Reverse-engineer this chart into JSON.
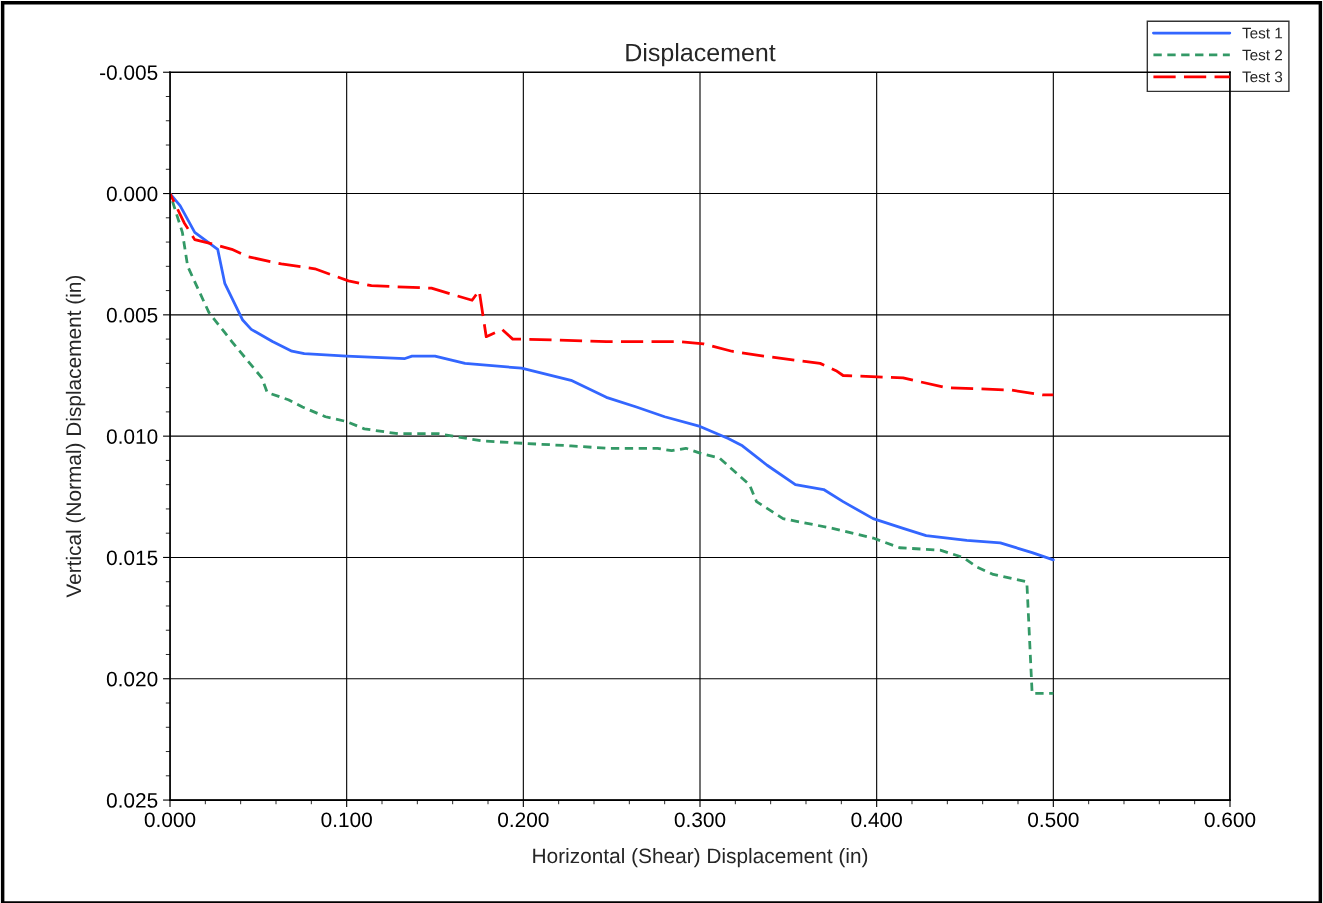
{
  "chart_data": {
    "type": "line",
    "title": "Displacement",
    "xlabel": "Horizontal (Shear) Displacement (in)",
    "ylabel": "Vertical (Normal) Displacement (in)",
    "xlim": [
      0,
      0.6
    ],
    "xticks": [
      {
        "value": 0,
        "label": "0.000"
      },
      {
        "value": 0.1,
        "label": "0.100"
      },
      {
        "value": 0.2,
        "label": "0.200"
      },
      {
        "value": 0.3,
        "label": "0.300"
      },
      {
        "value": 0.4,
        "label": "0.400"
      },
      {
        "value": 0.5,
        "label": "0.500"
      },
      {
        "value": 0.6,
        "label": "0.600"
      }
    ],
    "ylim": [
      0.025,
      -0.005
    ],
    "yticks": [
      {
        "value": -0.005,
        "label": "-0.005"
      },
      {
        "value": 0,
        "label": "0.000"
      },
      {
        "value": 0.005,
        "label": "0.005"
      },
      {
        "value": 0.01,
        "label": "0.010"
      },
      {
        "value": 0.015,
        "label": "0.015"
      },
      {
        "value": 0.02,
        "label": "0.020"
      },
      {
        "value": 0.025,
        "label": "0.025"
      }
    ],
    "grid": true,
    "legend": "top right",
    "series": [
      {
        "name": "Test 1",
        "color": "#3366ff",
        "line_style": "solid",
        "x": [
          0,
          0.0057,
          0.014,
          0.027,
          0.031,
          0.041,
          0.046,
          0.058,
          0.069,
          0.076,
          0.1,
          0.133,
          0.137,
          0.15,
          0.167,
          0.199,
          0.227,
          0.247,
          0.264,
          0.28,
          0.3,
          0.316,
          0.324,
          0.338,
          0.354,
          0.37,
          0.381,
          0.398,
          0.415,
          0.428,
          0.451,
          0.47,
          0.488,
          0.5
        ],
        "values": [
          0,
          0.0005,
          0.0016,
          0.0023,
          0.0037,
          0.0052,
          0.0056,
          0.0061,
          0.0065,
          0.0066,
          0.0067,
          0.0068,
          0.0067,
          0.0067,
          0.007,
          0.0072,
          0.0077,
          0.0084,
          0.0088,
          0.0092,
          0.0096,
          0.0101,
          0.0104,
          0.0112,
          0.012,
          0.0122,
          0.0127,
          0.0134,
          0.0138,
          0.0141,
          0.0143,
          0.0144,
          0.0148,
          0.0151
        ]
      },
      {
        "name": "Test 2",
        "color": "#339966",
        "line_style": "dotted",
        "x": [
          0,
          0.007,
          0.01,
          0.022,
          0.035,
          0.052,
          0.055,
          0.067,
          0.075,
          0.088,
          0.1,
          0.11,
          0.129,
          0.152,
          0.177,
          0.201,
          0.227,
          0.247,
          0.276,
          0.284,
          0.292,
          0.3,
          0.311,
          0.328,
          0.332,
          0.347,
          0.375,
          0.398,
          0.413,
          0.436,
          0.449,
          0.457,
          0.466,
          0.485,
          0.488,
          0.5
        ],
        "values": [
          0,
          0.0016,
          0.003,
          0.0049,
          0.0061,
          0.0076,
          0.0082,
          0.0085,
          0.0088,
          0.0092,
          0.0094,
          0.0097,
          0.0099,
          0.0099,
          0.0102,
          0.0103,
          0.0104,
          0.0105,
          0.0105,
          0.0106,
          0.0105,
          0.0107,
          0.0109,
          0.012,
          0.0127,
          0.0134,
          0.0138,
          0.0142,
          0.0146,
          0.0147,
          0.015,
          0.0154,
          0.0157,
          0.016,
          0.0206,
          0.0206
        ]
      },
      {
        "name": "Test 3",
        "color": "#ff0000",
        "line_style": "dashed",
        "x": [
          0,
          0.008,
          0.014,
          0.025,
          0.035,
          0.044,
          0.063,
          0.082,
          0.101,
          0.114,
          0.148,
          0.171,
          0.175,
          0.179,
          0.188,
          0.194,
          0.199,
          0.247,
          0.254,
          0.288,
          0.302,
          0.318,
          0.336,
          0.368,
          0.377,
          0.381,
          0.415,
          0.439,
          0.476,
          0.494,
          0.5
        ],
        "values": [
          0,
          0.0012,
          0.0019,
          0.0021,
          0.0023,
          0.0026,
          0.0029,
          0.0031,
          0.0036,
          0.0038,
          0.0039,
          0.0044,
          0.004,
          0.0059,
          0.0056,
          0.006,
          0.006,
          0.0061,
          0.0061,
          0.0061,
          0.0062,
          0.0065,
          0.0067,
          0.007,
          0.0073,
          0.0075,
          0.0076,
          0.008,
          0.0081,
          0.0083,
          0.0083
        ]
      }
    ]
  }
}
